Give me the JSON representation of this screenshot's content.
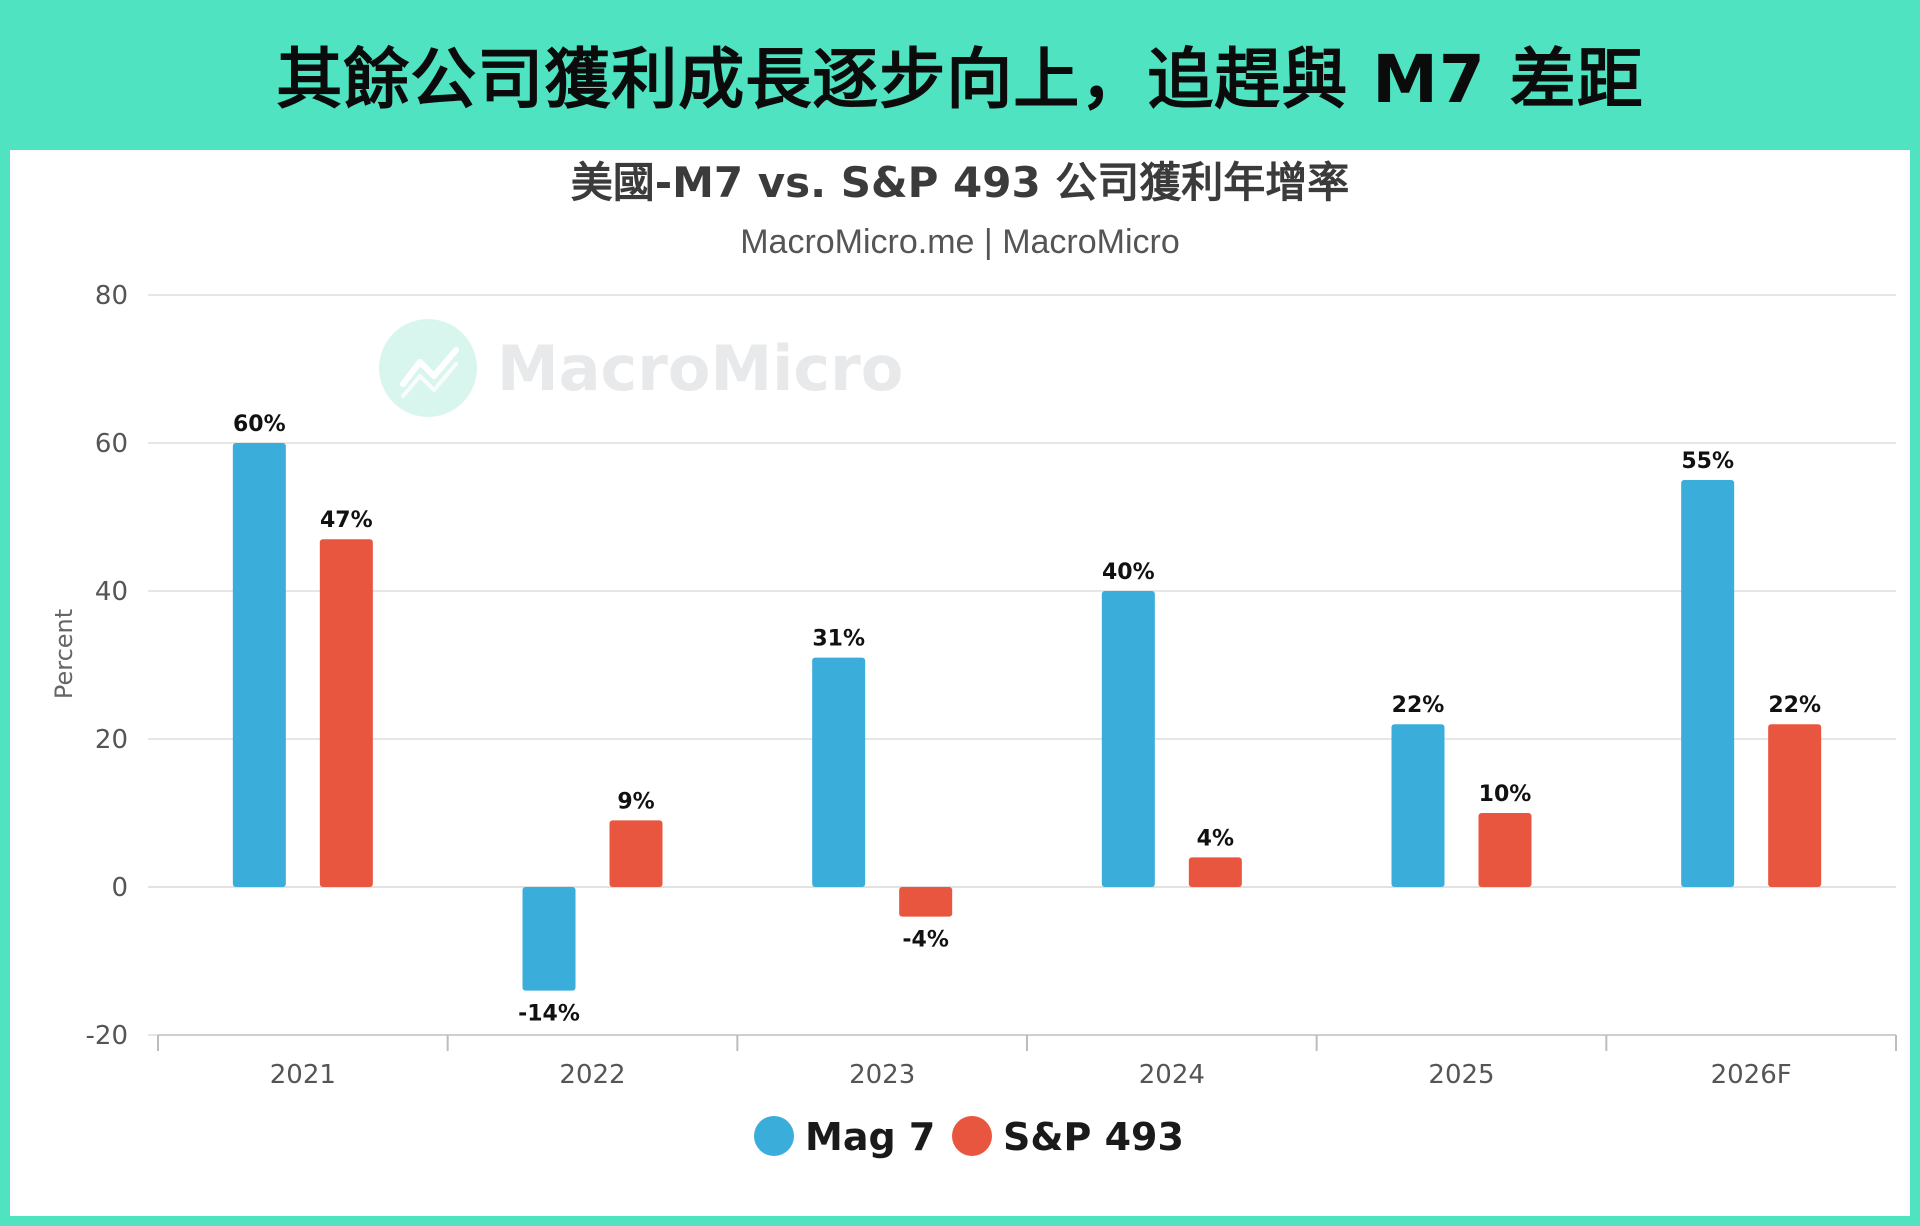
{
  "banner": {
    "title": "其餘公司獲利成長逐步向上，追趕與 M7 差距"
  },
  "watermark": {
    "text": "MacroMicro",
    "icon": "trend-chart-icon"
  },
  "colors": {
    "background": "#4fe3c1",
    "mag7": "#3aaddb",
    "sp493": "#e8563f",
    "watermark_circle": "#d9f6ee"
  },
  "chart_data": {
    "type": "bar",
    "title": "美國-M7 vs. S&P 493 公司獲利年增率",
    "subtitle": "MacroMicro.me | MacroMicro",
    "xlabel": "",
    "ylabel": "Percent",
    "ylim": [
      -20,
      80
    ],
    "yticks": [
      "80",
      "60",
      "40",
      "20",
      "0",
      "-20"
    ],
    "categories": [
      "2021",
      "2022",
      "2023",
      "2024",
      "2025",
      "2026F"
    ],
    "grid": true,
    "legend_position": "bottom-center",
    "series": [
      {
        "name": "Mag 7",
        "color": "#3aaddb",
        "values": [
          60,
          -14,
          31,
          40,
          22,
          55
        ],
        "labels": [
          "60%",
          "-14%",
          "31%",
          "40%",
          "22%",
          "55%"
        ]
      },
      {
        "name": "S&P 493",
        "color": "#e8563f",
        "values": [
          47,
          9,
          -4,
          4,
          10,
          22
        ],
        "labels": [
          "47%",
          "9%",
          "-4%",
          "4%",
          "10%",
          "22%"
        ]
      }
    ]
  }
}
